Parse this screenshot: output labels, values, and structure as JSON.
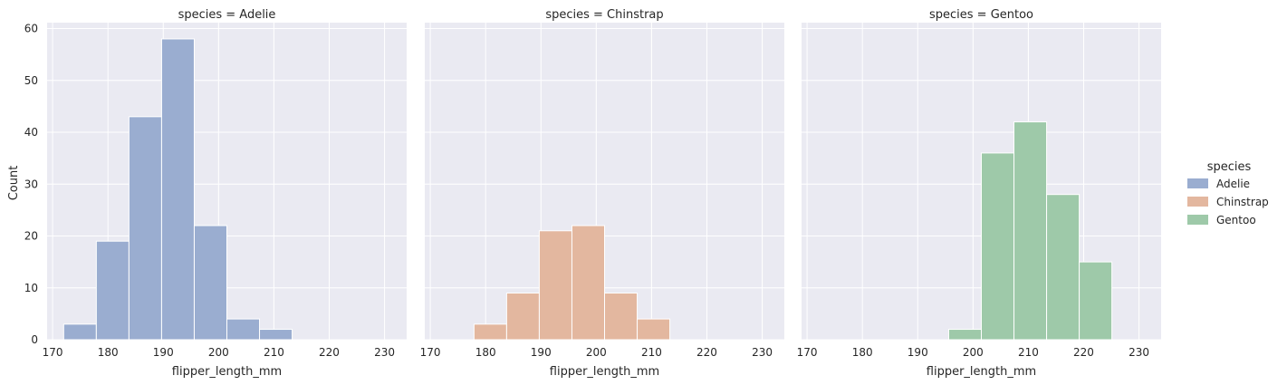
{
  "chart_data": {
    "type": "bar",
    "layout": "facet-histogram",
    "xlabel": "flipper_length_mm",
    "ylabel": "Count",
    "xlim": [
      169,
      234
    ],
    "ylim": [
      0,
      61
    ],
    "x_ticks": [
      170,
      180,
      190,
      200,
      210,
      220,
      230
    ],
    "y_ticks": [
      0,
      10,
      20,
      30,
      40,
      50,
      60
    ],
    "bin_edges": [
      172,
      177.9,
      183.8,
      189.7,
      195.6,
      201.5,
      207.4,
      213.3,
      219.2,
      225.1,
      231
    ],
    "grid": true,
    "legend": {
      "title": "species",
      "position": "right",
      "entries": [
        {
          "label": "Adelie",
          "color": "#9aadd0"
        },
        {
          "label": "Chinstrap",
          "color": "#e3b79f"
        },
        {
          "label": "Gentoo",
          "color": "#9ec9a9"
        }
      ]
    },
    "panels": [
      {
        "title": "species = Adelie",
        "color": "#9aadd0",
        "values": [
          3,
          19,
          43,
          58,
          22,
          4,
          2,
          0,
          0,
          0
        ]
      },
      {
        "title": "species = Chinstrap",
        "color": "#e3b79f",
        "values": [
          0,
          3,
          9,
          21,
          22,
          9,
          4,
          0,
          0,
          0
        ]
      },
      {
        "title": "species = Gentoo",
        "color": "#9ec9a9",
        "values": [
          0,
          0,
          0,
          0,
          2,
          36,
          42,
          28,
          15,
          0
        ]
      }
    ],
    "colors": {
      "background": "#eaeaf2",
      "grid": "#ffffff"
    }
  }
}
